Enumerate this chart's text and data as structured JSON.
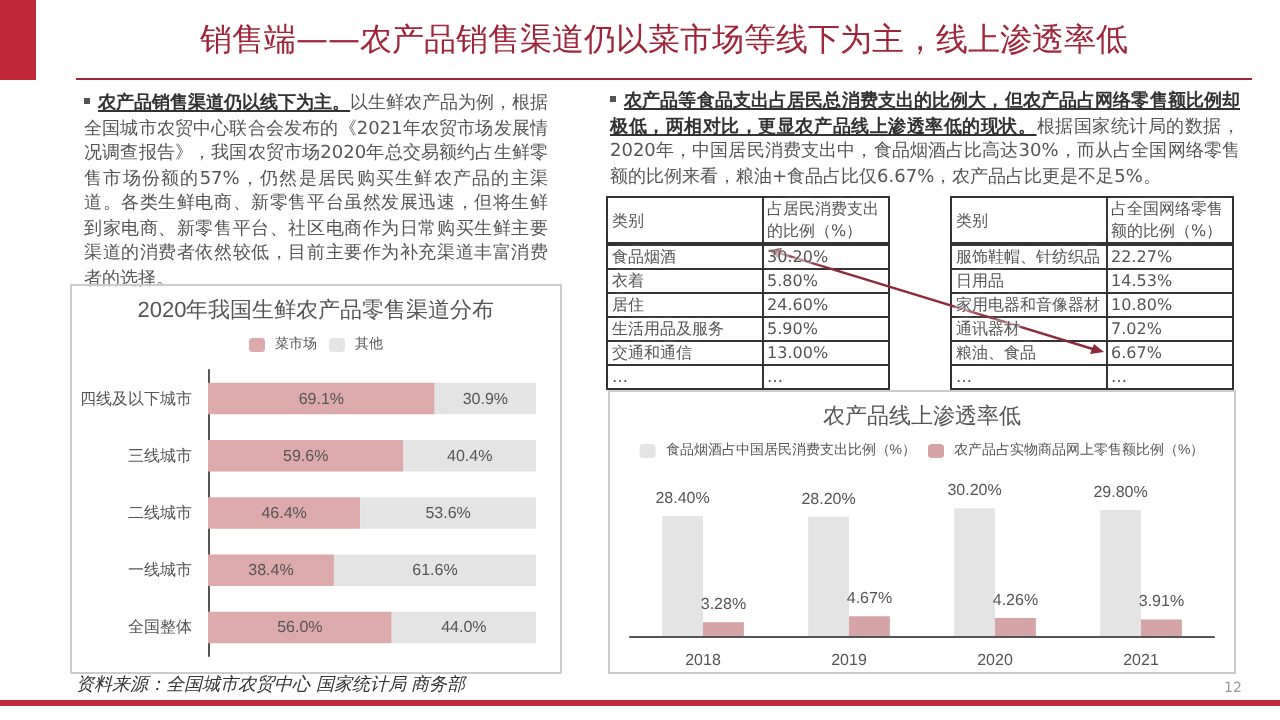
{
  "chart_data": [
    {
      "type": "other",
      "title": "销售端——农产品销售渠道仍以菜市场等线下为主，线上渗透率低",
      "annotations": [
        "农产品销售渠道仍以线下为主。",
        "以生鲜农产品为例，根据全国城市农贸中心联合会发布的《2021年农贸市场发展情况调查报告》，我国农贸市场2020年总交易额约占生鲜零售市场份额的57%，仍然是居民购买生鲜农产品的主渠道。各类生鲜电商、新零售平台虽然发展迅速，但将生鲜到家电商、新零售平台、社区电商作为日常购买生鲜主要渠道的消费者依然较低，目前主要作为补充渠道丰富消费者的选择。"
      ]
    },
    {
      "type": "other",
      "annotations": [
        "农产品等食品支出占居民总消费支出的比例大，但农产品占网络零售额比例却极低，两相对比，更显农产品线上渗透率低的现状。",
        "根据国家统计局的数据，2020年，中国居民消费支出中，食品烟酒占比高达30%，而从占全国网络零售额的比例来看，粮油+食品占比仅6.67%，农产品占比更是不足5%。"
      ]
    },
    {
      "type": "other",
      "annotations": [
        "类别",
        "占居民消费支出的比例（%）",
        "食品烟酒",
        "30.20%",
        "衣着",
        "5.80%",
        "居住",
        "24.60%",
        "生活用品及服务",
        "5.90%",
        "交通和通信",
        "13.00%",
        "…",
        "…"
      ]
    },
    {
      "type": "other",
      "annotations": [
        "类别",
        "占全国网络零售额的比例（%）",
        "服饰鞋帽、针纺织品",
        "22.27%",
        "日用品",
        "14.53%",
        "家用电器和音像器材",
        "10.80%",
        "通讯器材",
        "7.02%",
        "粮油、食品",
        "6.67%",
        "…",
        "…"
      ]
    },
    {
      "type": "bar",
      "title": "2020年我国生鲜农产品零售渠道分布",
      "orientation": "horizontal",
      "stacked": true,
      "legend": "top",
      "categories": [
        "四线及以下城市",
        "三线城市",
        "二线城市",
        "一线城市",
        "全国整体"
      ],
      "series": [
        {
          "name": "菜市场",
          "color": "#dcaaaa",
          "values": [
            69.1,
            59.6,
            46.4,
            38.4,
            56.0
          ],
          "value_labels": [
            "69.1%",
            "59.6%",
            "46.4%",
            "38.4%",
            "56.0%"
          ]
        },
        {
          "name": "其他",
          "color": "#e4e4e4",
          "values": [
            30.9,
            40.4,
            53.6,
            61.6,
            44.0
          ],
          "value_labels": [
            "30.9%",
            "40.4%",
            "53.6%",
            "61.6%",
            "44.0%"
          ]
        }
      ]
    },
    {
      "type": "bar",
      "title": "农产品线上渗透率低",
      "legend": "top",
      "categories": [
        "2018",
        "2019",
        "2020",
        "2021"
      ],
      "series": [
        {
          "name": "食品烟酒占中国居民消费支出比例（%）",
          "color": "#e4e4e4",
          "values": [
            28.4,
            28.2,
            30.2,
            29.8
          ],
          "value_labels": [
            "28.40%",
            "28.20%",
            "30.20%",
            "29.80%"
          ]
        },
        {
          "name": "农产品占实物商品网上零售额比例（%）",
          "color": "#d4a4a6",
          "values": [
            3.28,
            4.67,
            4.26,
            3.91
          ],
          "value_labels": [
            "3.28%",
            "4.67%",
            "4.26%",
            "3.91%"
          ]
        }
      ]
    },
    {
      "type": "other",
      "annotations": [
        "资料来源：全国城市农贸中心 国家统计局 商务部",
        "12"
      ]
    }
  ]
}
